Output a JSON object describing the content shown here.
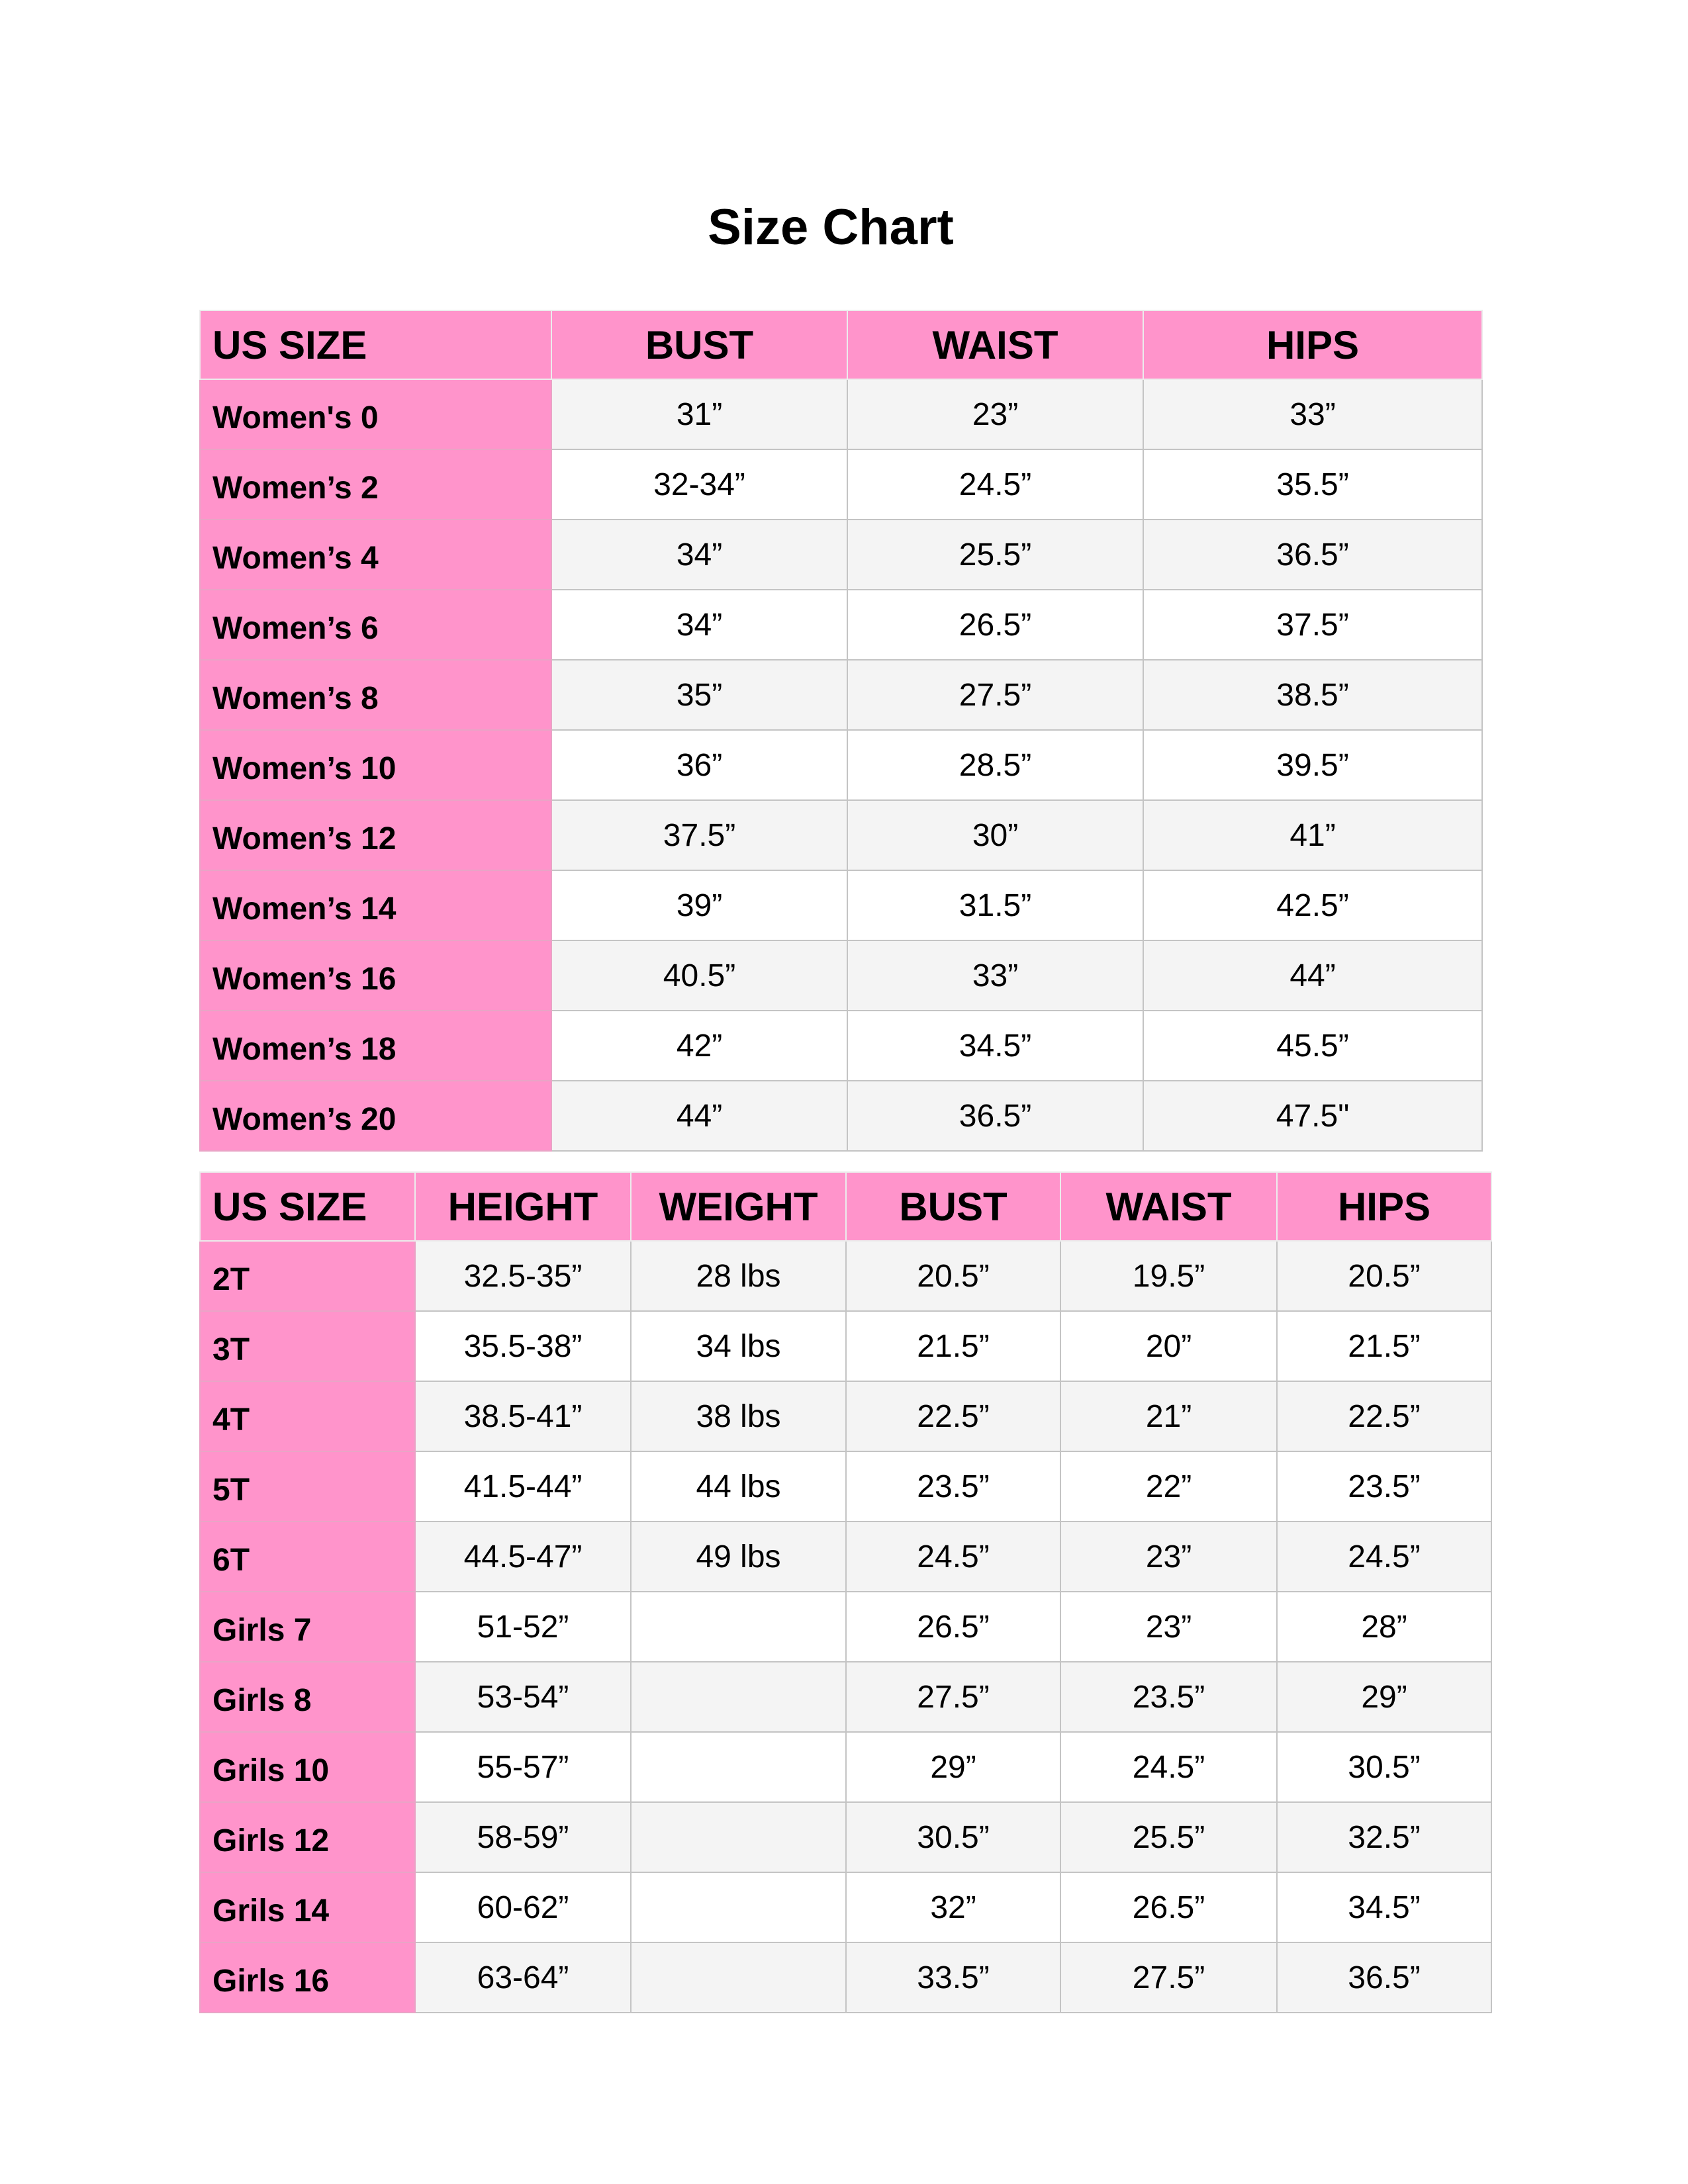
{
  "title": "Size Chart",
  "colors": {
    "header_pink": "#ff94cb",
    "stripe": "#f4f4f4",
    "border": "#c4c4c4"
  },
  "womens_table": {
    "headers": [
      "US SIZE",
      "BUST",
      "WAIST",
      "HIPS"
    ],
    "rows": [
      [
        "Women's 0",
        "31”",
        "23”",
        "33”"
      ],
      [
        "Women’s 2",
        "32-34”",
        "24.5”",
        "35.5”"
      ],
      [
        "Women’s 4",
        "34”",
        "25.5”",
        "36.5”"
      ],
      [
        "Women’s 6",
        "34”",
        "26.5”",
        "37.5”"
      ],
      [
        "Women’s 8",
        "35”",
        "27.5”",
        "38.5”"
      ],
      [
        "Women’s 10",
        "36”",
        "28.5”",
        "39.5”"
      ],
      [
        "Women’s 12",
        "37.5”",
        "30”",
        "41”"
      ],
      [
        "Women’s 14",
        "39”",
        "31.5”",
        "42.5”"
      ],
      [
        "Women’s 16",
        "40.5”",
        "33”",
        "44”"
      ],
      [
        "Women’s 18",
        "42”",
        "34.5”",
        "45.5”"
      ],
      [
        "Women’s 20",
        "44”",
        "36.5”",
        "47.5\""
      ]
    ]
  },
  "kids_table": {
    "headers": [
      "US SIZE",
      "HEIGHT",
      "WEIGHT",
      "BUST",
      "WAIST",
      "HIPS"
    ],
    "rows": [
      [
        "2T",
        "32.5-35”",
        "28 lbs",
        "20.5”",
        "19.5”",
        "20.5”"
      ],
      [
        "3T",
        "35.5-38”",
        "34 lbs",
        "21.5”",
        "20”",
        "21.5”"
      ],
      [
        "4T",
        "38.5-41”",
        "38 lbs",
        "22.5”",
        "21”",
        "22.5”"
      ],
      [
        "5T",
        "41.5-44”",
        "44 lbs",
        "23.5”",
        "22”",
        "23.5”"
      ],
      [
        "6T",
        "44.5-47”",
        "49 lbs",
        "24.5”",
        "23”",
        "24.5”"
      ],
      [
        "Girls 7",
        "51-52”",
        "",
        "26.5”",
        "23”",
        "28”"
      ],
      [
        "Girls 8",
        "53-54”",
        "",
        "27.5”",
        "23.5”",
        "29”"
      ],
      [
        "Grils 10",
        "55-57”",
        "",
        "29”",
        "24.5”",
        "30.5”"
      ],
      [
        "Girls 12",
        "58-59”",
        "",
        "30.5”",
        "25.5”",
        "32.5”"
      ],
      [
        "Grils 14",
        "60-62”",
        "",
        "32”",
        "26.5”",
        "34.5”"
      ],
      [
        "Girls 16",
        "63-64”",
        "",
        "33.5”",
        "27.5”",
        "36.5”"
      ]
    ]
  }
}
